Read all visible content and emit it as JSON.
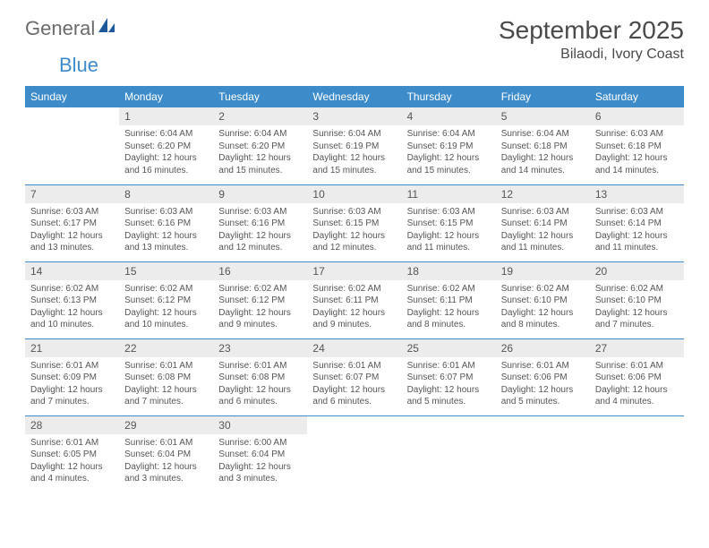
{
  "branding": {
    "logo_general": "General",
    "logo_blue": "Blue",
    "logo_icon_color": "#1e5a99"
  },
  "header": {
    "title": "September 2025",
    "location": "Bilaodi, Ivory Coast"
  },
  "style": {
    "header_bg": "#3d8bc9",
    "header_text": "#ffffff",
    "daynum_bg": "#ececec",
    "border_color": "#3d8bc9",
    "body_text": "#555555",
    "fontsize_title": 28,
    "fontsize_location": 16,
    "fontsize_dayhead": 12,
    "fontsize_daynum": 12,
    "fontsize_info": 10
  },
  "day_headers": [
    "Sunday",
    "Monday",
    "Tuesday",
    "Wednesday",
    "Thursday",
    "Friday",
    "Saturday"
  ],
  "weeks": [
    [
      null,
      {
        "n": "1",
        "sr": "Sunrise: 6:04 AM",
        "ss": "Sunset: 6:20 PM",
        "dl": "Daylight: 12 hours and 16 minutes."
      },
      {
        "n": "2",
        "sr": "Sunrise: 6:04 AM",
        "ss": "Sunset: 6:20 PM",
        "dl": "Daylight: 12 hours and 15 minutes."
      },
      {
        "n": "3",
        "sr": "Sunrise: 6:04 AM",
        "ss": "Sunset: 6:19 PM",
        "dl": "Daylight: 12 hours and 15 minutes."
      },
      {
        "n": "4",
        "sr": "Sunrise: 6:04 AM",
        "ss": "Sunset: 6:19 PM",
        "dl": "Daylight: 12 hours and 15 minutes."
      },
      {
        "n": "5",
        "sr": "Sunrise: 6:04 AM",
        "ss": "Sunset: 6:18 PM",
        "dl": "Daylight: 12 hours and 14 minutes."
      },
      {
        "n": "6",
        "sr": "Sunrise: 6:03 AM",
        "ss": "Sunset: 6:18 PM",
        "dl": "Daylight: 12 hours and 14 minutes."
      }
    ],
    [
      {
        "n": "7",
        "sr": "Sunrise: 6:03 AM",
        "ss": "Sunset: 6:17 PM",
        "dl": "Daylight: 12 hours and 13 minutes."
      },
      {
        "n": "8",
        "sr": "Sunrise: 6:03 AM",
        "ss": "Sunset: 6:16 PM",
        "dl": "Daylight: 12 hours and 13 minutes."
      },
      {
        "n": "9",
        "sr": "Sunrise: 6:03 AM",
        "ss": "Sunset: 6:16 PM",
        "dl": "Daylight: 12 hours and 12 minutes."
      },
      {
        "n": "10",
        "sr": "Sunrise: 6:03 AM",
        "ss": "Sunset: 6:15 PM",
        "dl": "Daylight: 12 hours and 12 minutes."
      },
      {
        "n": "11",
        "sr": "Sunrise: 6:03 AM",
        "ss": "Sunset: 6:15 PM",
        "dl": "Daylight: 12 hours and 11 minutes."
      },
      {
        "n": "12",
        "sr": "Sunrise: 6:03 AM",
        "ss": "Sunset: 6:14 PM",
        "dl": "Daylight: 12 hours and 11 minutes."
      },
      {
        "n": "13",
        "sr": "Sunrise: 6:03 AM",
        "ss": "Sunset: 6:14 PM",
        "dl": "Daylight: 12 hours and 11 minutes."
      }
    ],
    [
      {
        "n": "14",
        "sr": "Sunrise: 6:02 AM",
        "ss": "Sunset: 6:13 PM",
        "dl": "Daylight: 12 hours and 10 minutes."
      },
      {
        "n": "15",
        "sr": "Sunrise: 6:02 AM",
        "ss": "Sunset: 6:12 PM",
        "dl": "Daylight: 12 hours and 10 minutes."
      },
      {
        "n": "16",
        "sr": "Sunrise: 6:02 AM",
        "ss": "Sunset: 6:12 PM",
        "dl": "Daylight: 12 hours and 9 minutes."
      },
      {
        "n": "17",
        "sr": "Sunrise: 6:02 AM",
        "ss": "Sunset: 6:11 PM",
        "dl": "Daylight: 12 hours and 9 minutes."
      },
      {
        "n": "18",
        "sr": "Sunrise: 6:02 AM",
        "ss": "Sunset: 6:11 PM",
        "dl": "Daylight: 12 hours and 8 minutes."
      },
      {
        "n": "19",
        "sr": "Sunrise: 6:02 AM",
        "ss": "Sunset: 6:10 PM",
        "dl": "Daylight: 12 hours and 8 minutes."
      },
      {
        "n": "20",
        "sr": "Sunrise: 6:02 AM",
        "ss": "Sunset: 6:10 PM",
        "dl": "Daylight: 12 hours and 7 minutes."
      }
    ],
    [
      {
        "n": "21",
        "sr": "Sunrise: 6:01 AM",
        "ss": "Sunset: 6:09 PM",
        "dl": "Daylight: 12 hours and 7 minutes."
      },
      {
        "n": "22",
        "sr": "Sunrise: 6:01 AM",
        "ss": "Sunset: 6:08 PM",
        "dl": "Daylight: 12 hours and 7 minutes."
      },
      {
        "n": "23",
        "sr": "Sunrise: 6:01 AM",
        "ss": "Sunset: 6:08 PM",
        "dl": "Daylight: 12 hours and 6 minutes."
      },
      {
        "n": "24",
        "sr": "Sunrise: 6:01 AM",
        "ss": "Sunset: 6:07 PM",
        "dl": "Daylight: 12 hours and 6 minutes."
      },
      {
        "n": "25",
        "sr": "Sunrise: 6:01 AM",
        "ss": "Sunset: 6:07 PM",
        "dl": "Daylight: 12 hours and 5 minutes."
      },
      {
        "n": "26",
        "sr": "Sunrise: 6:01 AM",
        "ss": "Sunset: 6:06 PM",
        "dl": "Daylight: 12 hours and 5 minutes."
      },
      {
        "n": "27",
        "sr": "Sunrise: 6:01 AM",
        "ss": "Sunset: 6:06 PM",
        "dl": "Daylight: 12 hours and 4 minutes."
      }
    ],
    [
      {
        "n": "28",
        "sr": "Sunrise: 6:01 AM",
        "ss": "Sunset: 6:05 PM",
        "dl": "Daylight: 12 hours and 4 minutes."
      },
      {
        "n": "29",
        "sr": "Sunrise: 6:01 AM",
        "ss": "Sunset: 6:04 PM",
        "dl": "Daylight: 12 hours and 3 minutes."
      },
      {
        "n": "30",
        "sr": "Sunrise: 6:00 AM",
        "ss": "Sunset: 6:04 PM",
        "dl": "Daylight: 12 hours and 3 minutes."
      },
      null,
      null,
      null,
      null
    ]
  ]
}
